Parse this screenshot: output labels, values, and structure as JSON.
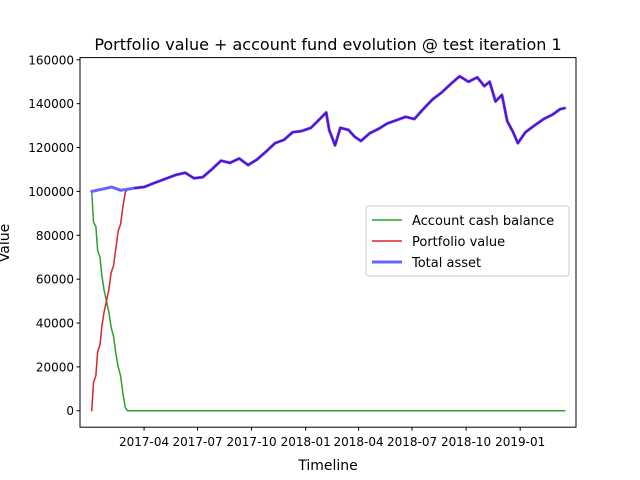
{
  "chart_data": {
    "type": "line",
    "title": "Portfolio value + account fund evolution @ test iteration 1",
    "xlabel": "Timeline",
    "ylabel": "Value",
    "grid": false,
    "legend_position": "center-right",
    "xlim": [
      "2016-12-13",
      "2019-04-06"
    ],
    "ylim": [
      -7500,
      161000
    ],
    "x_ticks": [
      "2017-04",
      "2017-07",
      "2017-10",
      "2018-01",
      "2018-04",
      "2018-07",
      "2018-10",
      "2019-01"
    ],
    "y_ticks": [
      0,
      20000,
      40000,
      60000,
      80000,
      100000,
      120000,
      140000,
      160000
    ],
    "y_tick_labels": [
      "0",
      "20000",
      "40000",
      "60000",
      "80000",
      "100000",
      "120000",
      "140000",
      "160000"
    ],
    "series": [
      {
        "name": "Account cash balance",
        "color": "#2ca02c",
        "x": [
          "2017-01-02",
          "2017-01-05",
          "2017-01-09",
          "2017-01-12",
          "2017-01-16",
          "2017-01-19",
          "2017-01-23",
          "2017-01-27",
          "2017-01-31",
          "2017-02-04",
          "2017-02-08",
          "2017-02-12",
          "2017-02-16",
          "2017-02-20",
          "2017-02-24",
          "2017-02-28",
          "2017-03-04",
          "2017-03-10",
          "2017-03-20",
          "2017-04-15",
          "2017-07-01",
          "2017-10-01",
          "2018-01-01",
          "2018-04-01",
          "2018-07-01",
          "2018-10-01",
          "2019-01-01",
          "2019-03-18"
        ],
        "values": [
          100000,
          86000,
          84000,
          73000,
          70000,
          62000,
          55000,
          50000,
          45000,
          38000,
          34000,
          26000,
          20000,
          16000,
          8000,
          1500,
          0,
          0,
          0,
          0,
          0,
          0,
          0,
          0,
          0,
          0,
          0,
          0
        ]
      },
      {
        "name": "Portfolio value",
        "color": "#d62728",
        "x": [
          "2017-01-02",
          "2017-01-05",
          "2017-01-09",
          "2017-01-12",
          "2017-01-16",
          "2017-01-19",
          "2017-01-23",
          "2017-01-27",
          "2017-01-31",
          "2017-02-04",
          "2017-02-08",
          "2017-02-12",
          "2017-02-16",
          "2017-02-20",
          "2017-02-24",
          "2017-02-28",
          "2017-03-04"
        ],
        "values": [
          0,
          13000,
          16000,
          27000,
          30000,
          38000,
          45000,
          50000,
          55000,
          63000,
          66000,
          74000,
          82000,
          85000,
          93000,
          99500,
          101000
        ]
      },
      {
        "name": "Total asset",
        "color": "#6666ff",
        "x": [
          "2017-01-02",
          "2017-01-20",
          "2017-02-05",
          "2017-02-20",
          "2017-03-04",
          "2017-03-15",
          "2017-04-01",
          "2017-04-20",
          "2017-05-10",
          "2017-05-25",
          "2017-06-10",
          "2017-06-25",
          "2017-07-10",
          "2017-07-25",
          "2017-08-10",
          "2017-08-25",
          "2017-09-10",
          "2017-09-25",
          "2017-10-10",
          "2017-10-25",
          "2017-11-10",
          "2017-11-25",
          "2017-12-10",
          "2017-12-25",
          "2018-01-10",
          "2018-01-25",
          "2018-02-05",
          "2018-02-10",
          "2018-02-20",
          "2018-03-01",
          "2018-03-15",
          "2018-03-25",
          "2018-04-05",
          "2018-04-20",
          "2018-05-05",
          "2018-05-20",
          "2018-06-05",
          "2018-06-20",
          "2018-07-05",
          "2018-07-20",
          "2018-08-05",
          "2018-08-20",
          "2018-09-05",
          "2018-09-20",
          "2018-10-05",
          "2018-10-20",
          "2018-11-01",
          "2018-11-10",
          "2018-11-20",
          "2018-12-01",
          "2018-12-10",
          "2018-12-20",
          "2018-12-28",
          "2019-01-10",
          "2019-01-25",
          "2019-02-10",
          "2019-02-25",
          "2019-03-10",
          "2019-03-18"
        ],
        "values": [
          100000,
          101000,
          102000,
          100500,
          101000,
          101500,
          102000,
          104000,
          106000,
          107500,
          108500,
          106000,
          106500,
          110000,
          114000,
          113000,
          115000,
          112000,
          114500,
          118000,
          122000,
          123500,
          127000,
          127500,
          129000,
          133000,
          136000,
          128000,
          121000,
          129000,
          128000,
          125000,
          123000,
          126500,
          128500,
          131000,
          132500,
          134000,
          133000,
          137500,
          142000,
          145000,
          149000,
          152500,
          150000,
          152000,
          148000,
          150000,
          141000,
          144000,
          132000,
          127000,
          122000,
          127000,
          130000,
          133000,
          135000,
          137500,
          138000
        ]
      }
    ]
  }
}
